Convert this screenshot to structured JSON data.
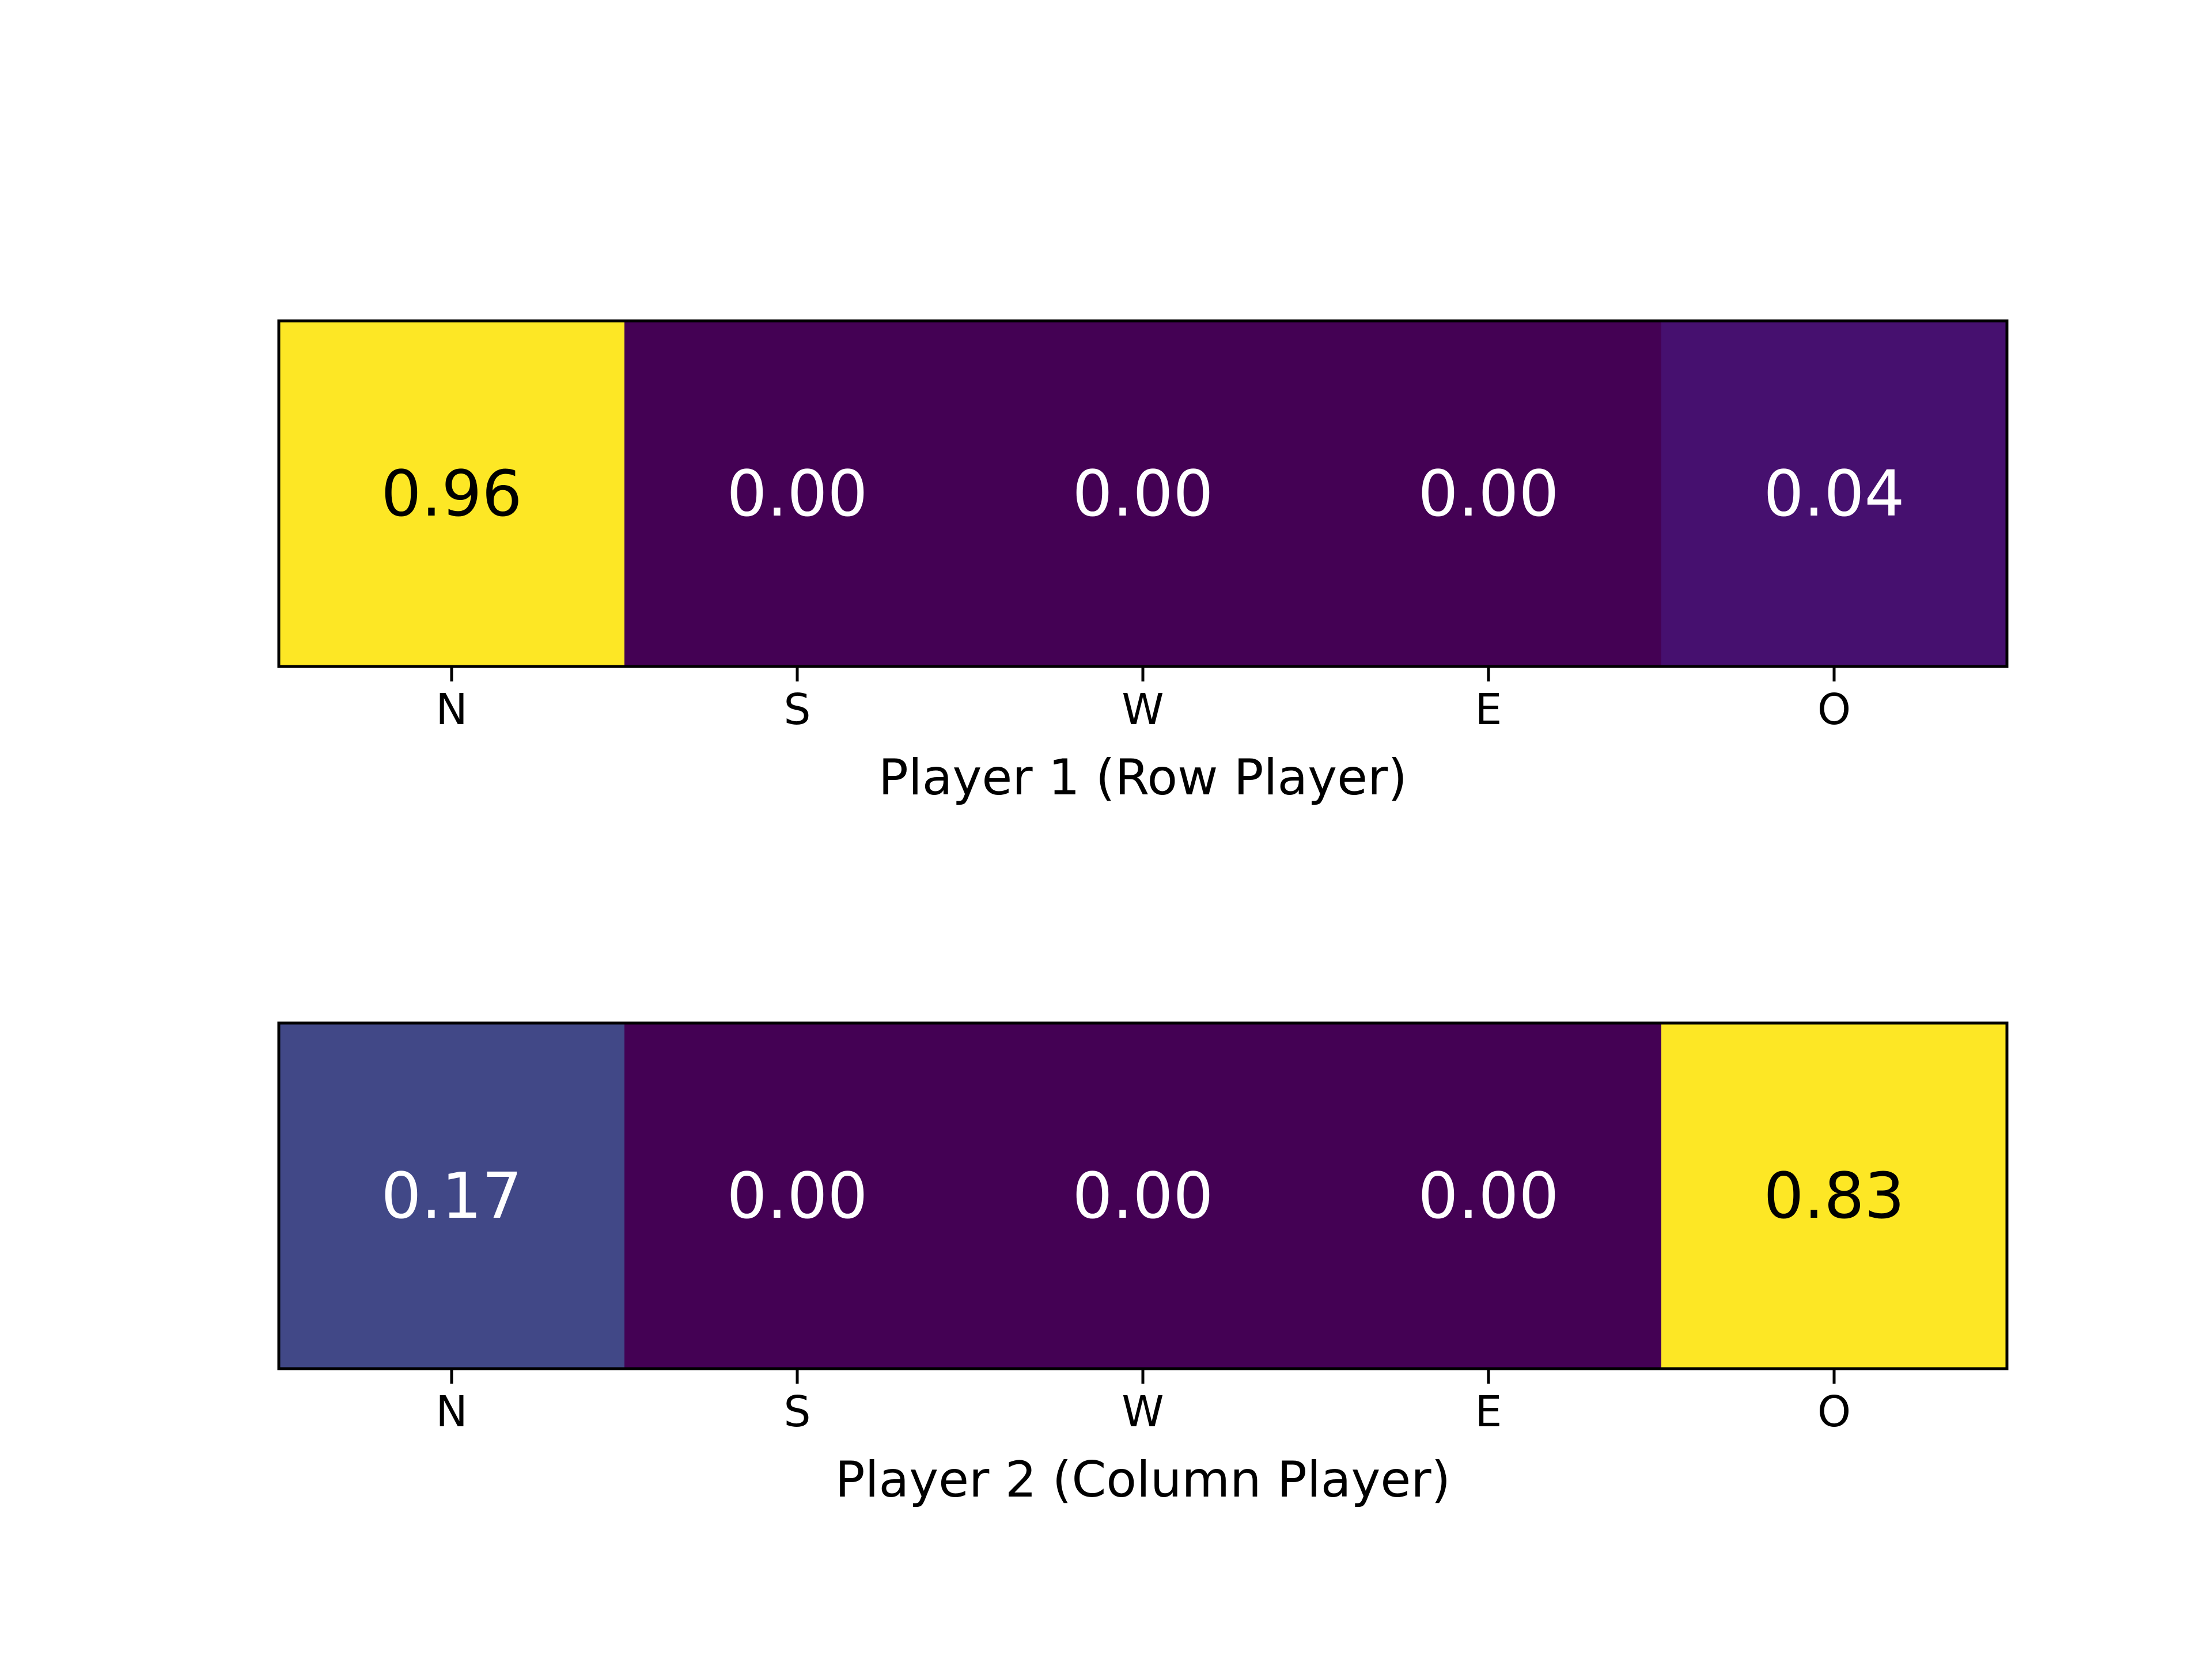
{
  "chart_data": [
    {
      "type": "heatmap",
      "categories": [
        "N",
        "S",
        "W",
        "E",
        "O"
      ],
      "values": [
        0.96,
        0.0,
        0.0,
        0.0,
        0.04
      ],
      "value_labels": [
        "0.96",
        "0.00",
        "0.00",
        "0.00",
        "0.04"
      ],
      "xlabel": "Player 1 (Row Player)",
      "ylabel": "",
      "colormap": "viridis",
      "colors": [
        "#fde725",
        "#440154",
        "#440154",
        "#440154",
        "#46106f"
      ],
      "label_colors": [
        "#000000",
        "#ffffff",
        "#ffffff",
        "#ffffff",
        "#ffffff"
      ]
    },
    {
      "type": "heatmap",
      "categories": [
        "N",
        "S",
        "W",
        "E",
        "O"
      ],
      "values": [
        0.17,
        0.0,
        0.0,
        0.0,
        0.83
      ],
      "value_labels": [
        "0.17",
        "0.00",
        "0.00",
        "0.00",
        "0.83"
      ],
      "xlabel": "Player 2 (Column Player)",
      "ylabel": "",
      "colormap": "viridis",
      "colors": [
        "#414887",
        "#440154",
        "#440154",
        "#440154",
        "#fde725"
      ],
      "label_colors": [
        "#ffffff",
        "#ffffff",
        "#ffffff",
        "#ffffff",
        "#000000"
      ]
    }
  ]
}
